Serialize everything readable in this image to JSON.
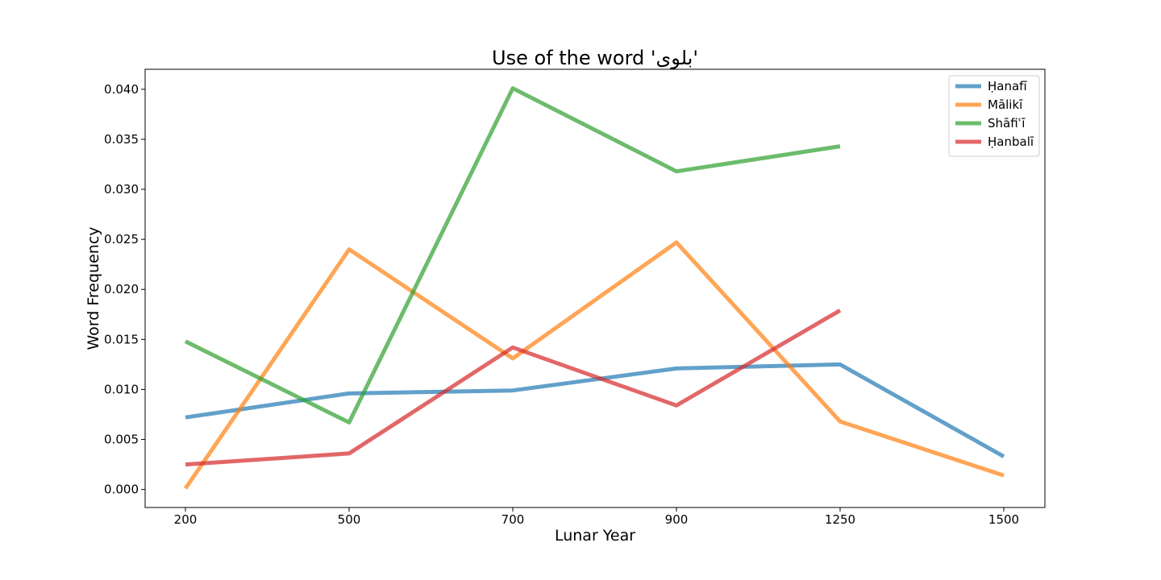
{
  "chart_data": {
    "type": "line",
    "title": "Use of the word 'بلوی'",
    "xlabel": "Lunar Year",
    "ylabel": "Word Frequency",
    "categories": [
      "200",
      "500",
      "700",
      "900",
      "1250",
      "1500"
    ],
    "ylim": [
      -0.0018,
      0.042
    ],
    "yticks": [
      "0.000",
      "0.005",
      "0.010",
      "0.015",
      "0.020",
      "0.025",
      "0.030",
      "0.035",
      "0.040"
    ],
    "ytick_values": [
      0,
      0.005,
      0.01,
      0.015,
      0.02,
      0.025,
      0.03,
      0.035,
      0.04
    ],
    "legend_position": "top-right",
    "grid": false,
    "series": [
      {
        "name": "Ḥanafī",
        "color": "#1f77b4",
        "values": [
          0.0072,
          0.0096,
          0.0099,
          0.0121,
          0.0125,
          0.0033
        ]
      },
      {
        "name": "Mālikī",
        "color": "#ff7f0e",
        "values": [
          0.0001,
          0.024,
          0.0131,
          0.0247,
          0.0068,
          0.0014
        ]
      },
      {
        "name": "Shāfiʿī",
        "color": "#2ca02c",
        "values": [
          0.0148,
          0.0067,
          0.0401,
          0.0318,
          0.0343,
          null
        ]
      },
      {
        "name": "Ḥanbalī",
        "color": "#d62728",
        "values": [
          0.0025,
          0.0036,
          0.0142,
          0.0084,
          0.0179,
          null
        ]
      }
    ]
  }
}
